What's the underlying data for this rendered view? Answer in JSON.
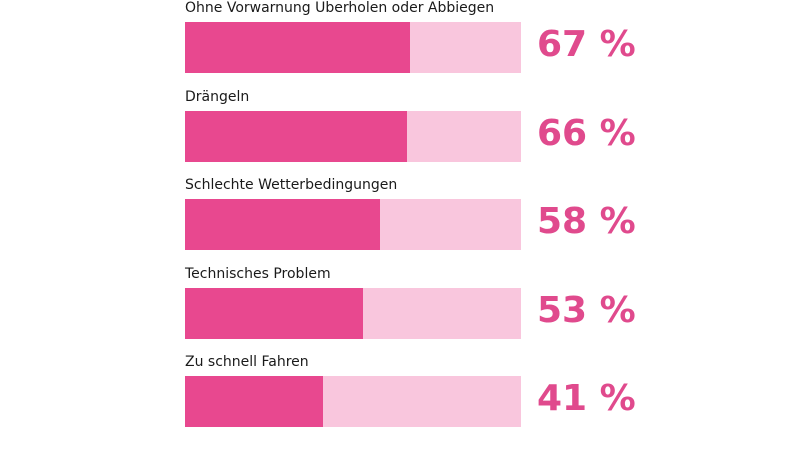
{
  "chart_data": {
    "type": "bar",
    "orientation": "horizontal",
    "categories": [
      "Ohne Vorwarnung Überholen oder Abbiegen",
      "Drängeln",
      "Schlechte Wetterbedingungen",
      "Technisches Problem",
      "Zu schnell Fahren"
    ],
    "values": [
      67,
      66,
      58,
      53,
      41
    ],
    "value_labels": [
      "67 %",
      "66 %",
      "58 %",
      "53 %",
      "41 %"
    ],
    "xlim": [
      0,
      100
    ],
    "colors": {
      "fill": "#e8488f",
      "track": "#f9c6dd",
      "value_text": "#e04a8d"
    }
  }
}
